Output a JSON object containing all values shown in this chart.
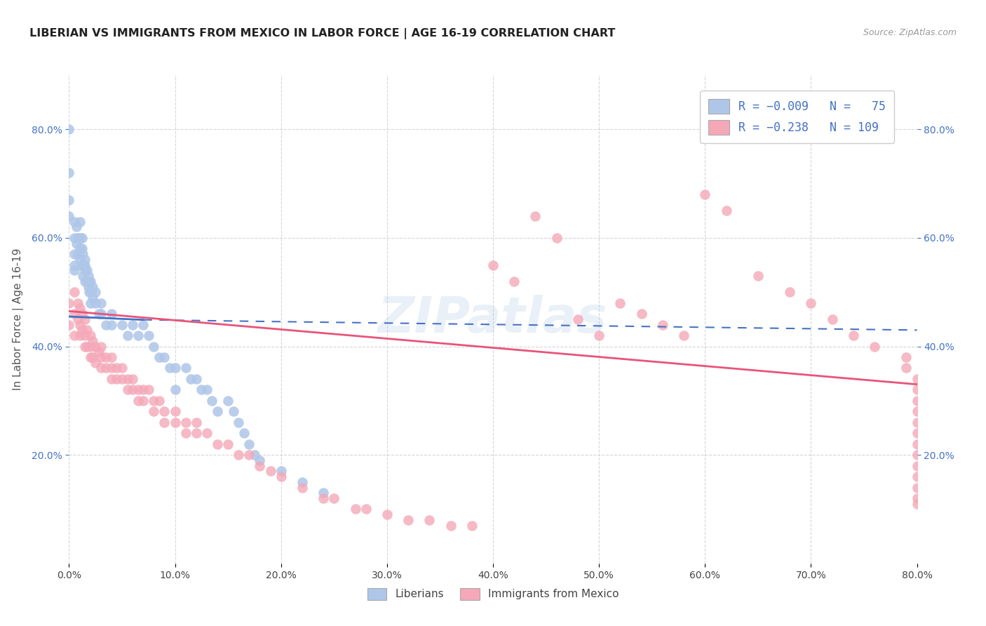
{
  "title": "LIBERIAN VS IMMIGRANTS FROM MEXICO IN LABOR FORCE | AGE 16-19 CORRELATION CHART",
  "source": "Source: ZipAtlas.com",
  "ylabel": "In Labor Force | Age 16-19",
  "xlim": [
    0.0,
    0.8
  ],
  "ylim": [
    0.0,
    0.9
  ],
  "x_ticks": [
    0.0,
    0.1,
    0.2,
    0.3,
    0.4,
    0.5,
    0.6,
    0.7,
    0.8
  ],
  "y_ticks": [
    0.2,
    0.4,
    0.6,
    0.8
  ],
  "y_tick_labels": [
    "20.0%",
    "40.0%",
    "60.0%",
    "80.0%"
  ],
  "x_tick_labels": [
    "0.0%",
    "10.0%",
    "20.0%",
    "30.0%",
    "40.0%",
    "50.0%",
    "60.0%",
    "70.0%",
    "80.0%"
  ],
  "liberian_color": "#aec6e8",
  "mexico_color": "#f4a8b8",
  "liberian_line_color": "#4472c4",
  "mexico_line_color": "#e8547a",
  "watermark": "ZIPatlas",
  "legend_text_color": "#4472c4",
  "lib_x": [
    0.0,
    0.0,
    0.0,
    0.0,
    0.005,
    0.005,
    0.005,
    0.005,
    0.005,
    0.007,
    0.007,
    0.008,
    0.008,
    0.01,
    0.01,
    0.01,
    0.01,
    0.012,
    0.012,
    0.012,
    0.013,
    0.013,
    0.013,
    0.015,
    0.015,
    0.015,
    0.015,
    0.017,
    0.017,
    0.018,
    0.018,
    0.019,
    0.019,
    0.02,
    0.02,
    0.02,
    0.022,
    0.022,
    0.025,
    0.025,
    0.028,
    0.03,
    0.03,
    0.035,
    0.04,
    0.04,
    0.05,
    0.055,
    0.06,
    0.065,
    0.07,
    0.075,
    0.08,
    0.085,
    0.09,
    0.095,
    0.1,
    0.1,
    0.11,
    0.115,
    0.12,
    0.125,
    0.13,
    0.135,
    0.14,
    0.15,
    0.155,
    0.16,
    0.165,
    0.17,
    0.175,
    0.18,
    0.2,
    0.22,
    0.24
  ],
  "lib_y": [
    0.8,
    0.72,
    0.67,
    0.64,
    0.63,
    0.6,
    0.57,
    0.55,
    0.54,
    0.62,
    0.59,
    0.6,
    0.57,
    0.63,
    0.6,
    0.58,
    0.56,
    0.6,
    0.58,
    0.55,
    0.57,
    0.55,
    0.53,
    0.56,
    0.55,
    0.54,
    0.52,
    0.54,
    0.52,
    0.53,
    0.51,
    0.52,
    0.5,
    0.52,
    0.5,
    0.48,
    0.51,
    0.49,
    0.5,
    0.48,
    0.46,
    0.48,
    0.46,
    0.44,
    0.46,
    0.44,
    0.44,
    0.42,
    0.44,
    0.42,
    0.44,
    0.42,
    0.4,
    0.38,
    0.38,
    0.36,
    0.36,
    0.32,
    0.36,
    0.34,
    0.34,
    0.32,
    0.32,
    0.3,
    0.28,
    0.3,
    0.28,
    0.26,
    0.24,
    0.22,
    0.2,
    0.19,
    0.17,
    0.15,
    0.13
  ],
  "mex_x": [
    0.0,
    0.0,
    0.005,
    0.005,
    0.005,
    0.008,
    0.008,
    0.01,
    0.01,
    0.01,
    0.012,
    0.012,
    0.015,
    0.015,
    0.015,
    0.017,
    0.017,
    0.02,
    0.02,
    0.02,
    0.022,
    0.022,
    0.025,
    0.025,
    0.028,
    0.03,
    0.03,
    0.03,
    0.035,
    0.035,
    0.04,
    0.04,
    0.04,
    0.045,
    0.045,
    0.05,
    0.05,
    0.055,
    0.055,
    0.06,
    0.06,
    0.065,
    0.065,
    0.07,
    0.07,
    0.075,
    0.08,
    0.08,
    0.085,
    0.09,
    0.09,
    0.1,
    0.1,
    0.11,
    0.11,
    0.12,
    0.12,
    0.13,
    0.14,
    0.15,
    0.16,
    0.17,
    0.18,
    0.19,
    0.2,
    0.22,
    0.24,
    0.25,
    0.27,
    0.28,
    0.3,
    0.32,
    0.34,
    0.36,
    0.38,
    0.4,
    0.42,
    0.44,
    0.46,
    0.48,
    0.5,
    0.52,
    0.54,
    0.56,
    0.58,
    0.6,
    0.62,
    0.65,
    0.68,
    0.7,
    0.72,
    0.74,
    0.76,
    0.79,
    0.79,
    0.8,
    0.8,
    0.8,
    0.8,
    0.8,
    0.8,
    0.8,
    0.8,
    0.8,
    0.8,
    0.8,
    0.8,
    0.8
  ],
  "mex_y": [
    0.48,
    0.44,
    0.5,
    0.46,
    0.42,
    0.48,
    0.45,
    0.47,
    0.44,
    0.42,
    0.46,
    0.43,
    0.45,
    0.42,
    0.4,
    0.43,
    0.4,
    0.42,
    0.4,
    0.38,
    0.41,
    0.38,
    0.4,
    0.37,
    0.39,
    0.4,
    0.38,
    0.36,
    0.38,
    0.36,
    0.38,
    0.36,
    0.34,
    0.36,
    0.34,
    0.36,
    0.34,
    0.34,
    0.32,
    0.34,
    0.32,
    0.32,
    0.3,
    0.32,
    0.3,
    0.32,
    0.3,
    0.28,
    0.3,
    0.28,
    0.26,
    0.28,
    0.26,
    0.26,
    0.24,
    0.26,
    0.24,
    0.24,
    0.22,
    0.22,
    0.2,
    0.2,
    0.18,
    0.17,
    0.16,
    0.14,
    0.12,
    0.12,
    0.1,
    0.1,
    0.09,
    0.08,
    0.08,
    0.07,
    0.07,
    0.55,
    0.52,
    0.64,
    0.6,
    0.45,
    0.42,
    0.48,
    0.46,
    0.44,
    0.42,
    0.68,
    0.65,
    0.53,
    0.5,
    0.48,
    0.45,
    0.42,
    0.4,
    0.38,
    0.36,
    0.34,
    0.32,
    0.3,
    0.28,
    0.26,
    0.24,
    0.22,
    0.2,
    0.18,
    0.16,
    0.14,
    0.12,
    0.11
  ]
}
